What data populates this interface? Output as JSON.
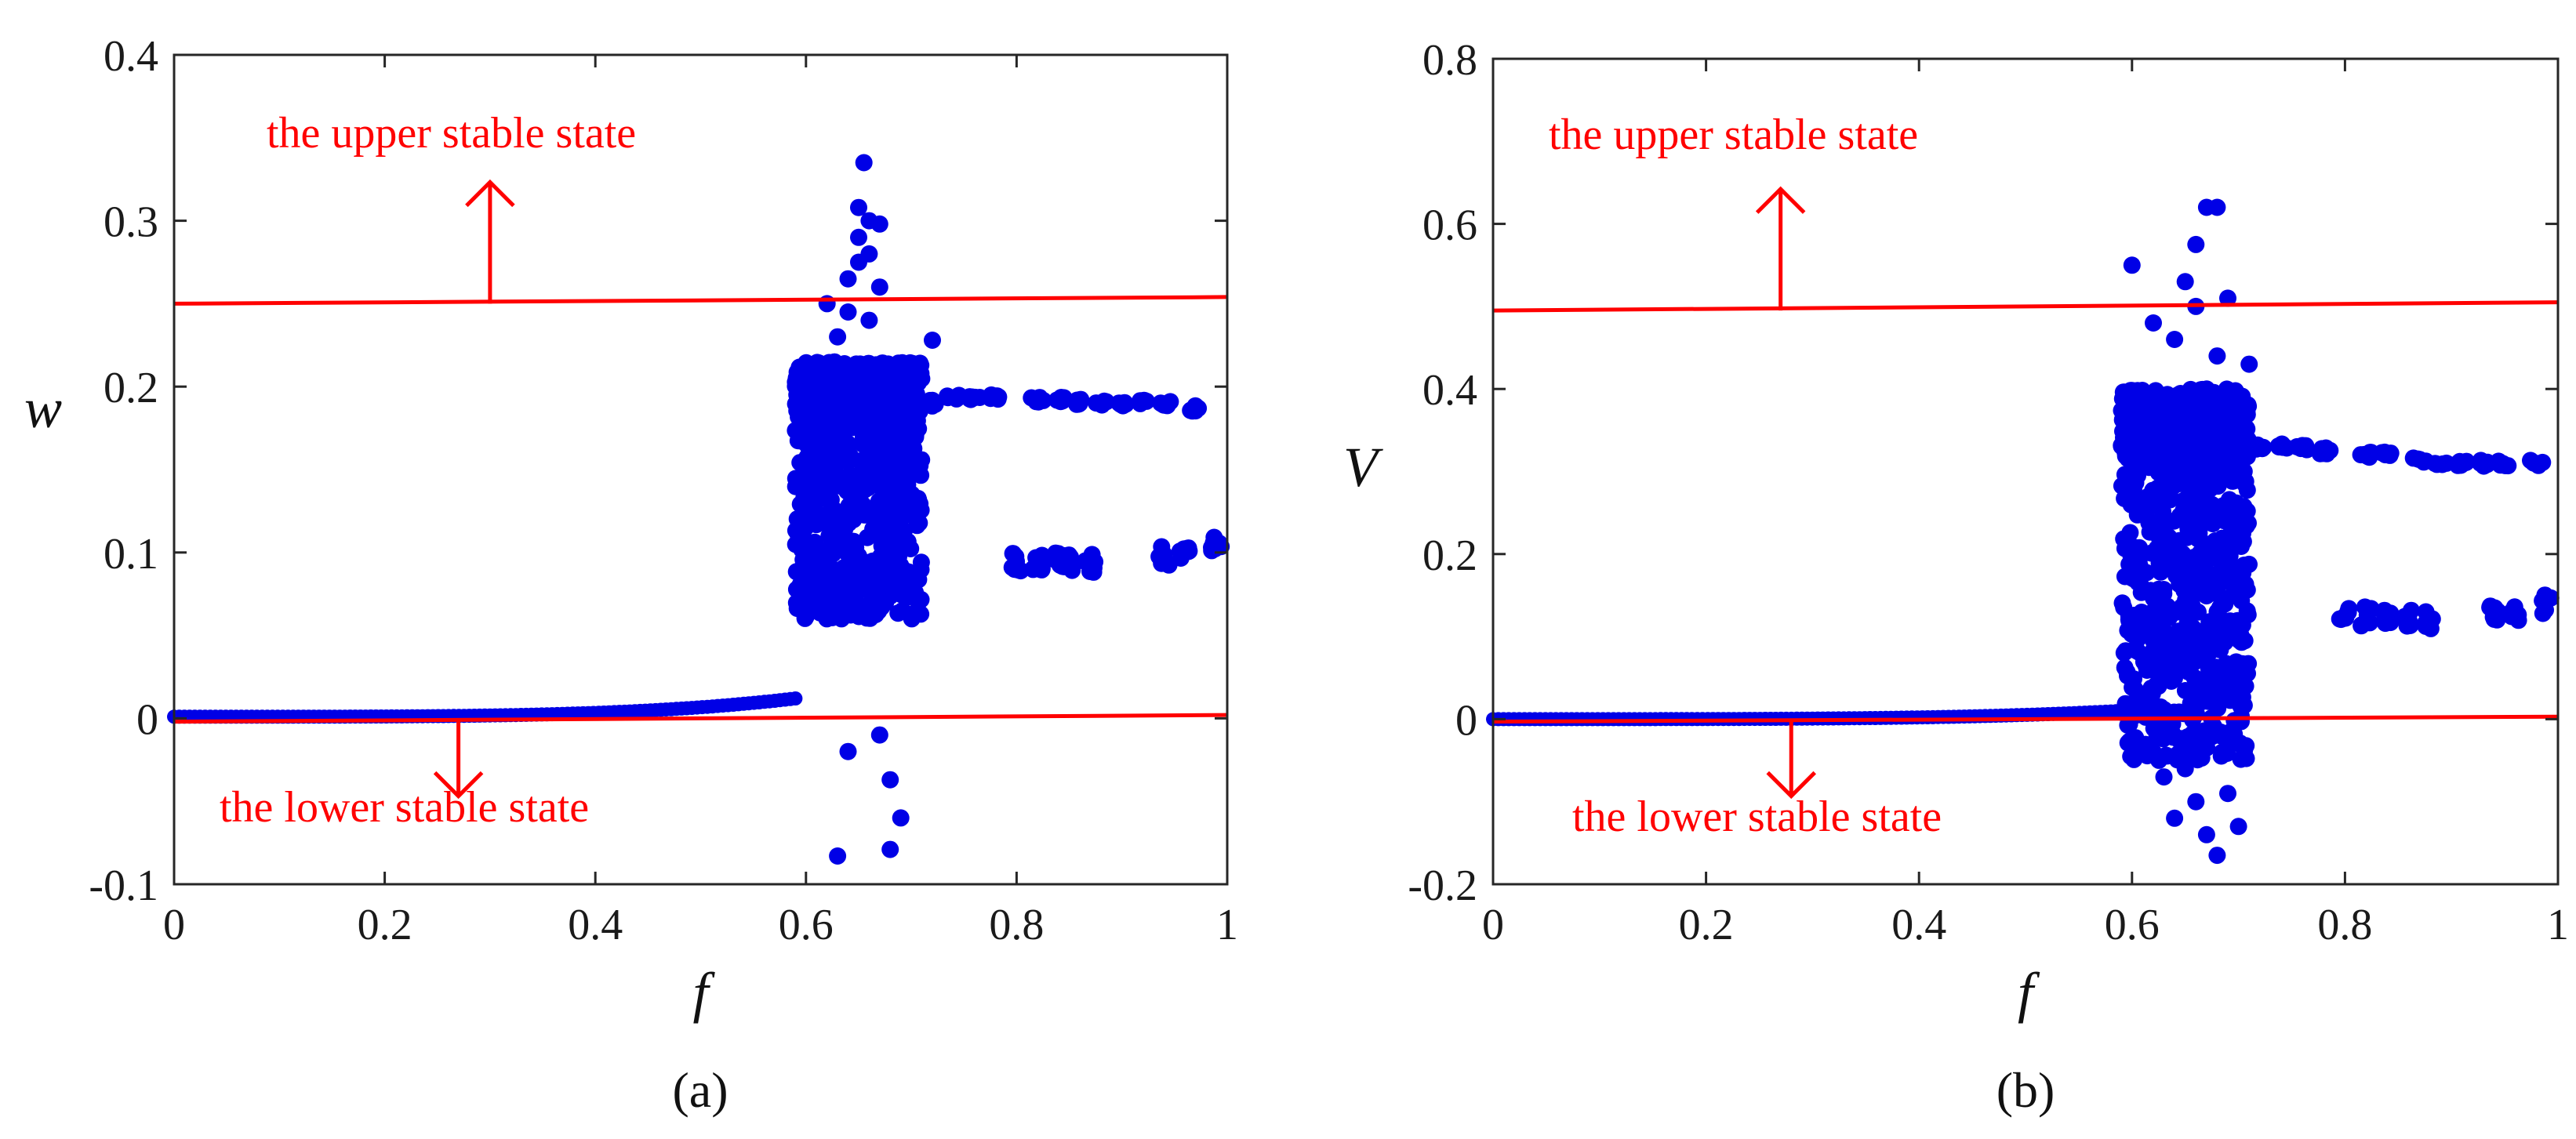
{
  "chart_data": [
    {
      "type": "scatter",
      "panel_label": "(a)",
      "xlabel": "f",
      "ylabel": "w",
      "xlim": [
        0,
        1
      ],
      "ylim": [
        -0.1,
        0.4
      ],
      "xticks": [
        "0",
        "0.2",
        "0.4",
        "0.6",
        "0.8",
        "1"
      ],
      "yticks": [
        "-0.1",
        "0",
        "0.1",
        "0.2",
        "0.3",
        "0.4"
      ],
      "grid": false,
      "color": "#0000e6",
      "reference_lines": [
        {
          "label": "the upper stable state",
          "y_start": 0.25,
          "y_end": 0.254,
          "color": "#ff0000",
          "arrow": "up",
          "arrow_x": 0.3
        },
        {
          "label": "the lower stable state",
          "y_start": -0.002,
          "y_end": 0.002,
          "color": "#ff0000",
          "arrow": "down",
          "arrow_x": 0.27
        }
      ],
      "regimes": {
        "steady_branch": {
          "x_start": 0.0,
          "x_end": 0.59,
          "y_start": 0.001,
          "y_end": 0.012
        },
        "chaotic_band": {
          "x_start": 0.59,
          "x_end": 0.71,
          "y_min": 0.06,
          "y_max": 0.215
        },
        "upper_branch": [
          [
            0.72,
            0.19
          ],
          [
            0.74,
            0.193
          ],
          [
            0.76,
            0.194
          ],
          [
            0.78,
            0.194
          ],
          [
            0.82,
            0.192
          ],
          [
            0.84,
            0.192
          ],
          [
            0.86,
            0.191
          ],
          [
            0.88,
            0.19
          ],
          [
            0.9,
            0.19
          ],
          [
            0.92,
            0.19
          ],
          [
            0.94,
            0.19
          ],
          [
            0.97,
            0.187
          ]
        ],
        "lower_branch": [
          [
            0.8,
            0.095
          ],
          [
            0.82,
            0.095
          ],
          [
            0.84,
            0.094
          ],
          [
            0.85,
            0.094
          ],
          [
            0.87,
            0.094
          ],
          [
            0.94,
            0.098
          ],
          [
            0.96,
            0.1
          ],
          [
            0.99,
            0.105
          ]
        ]
      },
      "points": [
        [
          0.63,
          -0.083
        ],
        [
          0.68,
          -0.079
        ],
        [
          0.69,
          -0.06
        ],
        [
          0.68,
          -0.037
        ],
        [
          0.64,
          -0.02
        ],
        [
          0.67,
          -0.01
        ],
        [
          0.655,
          0.335
        ],
        [
          0.65,
          0.308
        ],
        [
          0.66,
          0.3
        ],
        [
          0.67,
          0.298
        ],
        [
          0.65,
          0.29
        ],
        [
          0.66,
          0.28
        ],
        [
          0.65,
          0.275
        ],
        [
          0.64,
          0.265
        ],
        [
          0.67,
          0.26
        ],
        [
          0.62,
          0.25
        ],
        [
          0.64,
          0.245
        ],
        [
          0.66,
          0.24
        ],
        [
          0.72,
          0.228
        ],
        [
          0.63,
          0.23
        ]
      ]
    },
    {
      "type": "scatter",
      "panel_label": "(b)",
      "xlabel": "f",
      "ylabel": "V",
      "xlim": [
        0,
        1
      ],
      "ylim": [
        -0.2,
        0.8
      ],
      "xticks": [
        "0",
        "0.2",
        "0.4",
        "0.6",
        "0.8",
        "1"
      ],
      "yticks": [
        "-0.2",
        "0",
        "0.2",
        "0.4",
        "0.6",
        "0.8"
      ],
      "grid": false,
      "color": "#0000e6",
      "reference_lines": [
        {
          "label": "the upper stable state",
          "y_start": 0.495,
          "y_end": 0.505,
          "color": "#ff0000",
          "arrow": "up",
          "arrow_x": 0.27
        },
        {
          "label": "the lower stable state",
          "y_start": -0.003,
          "y_end": 0.003,
          "color": "#ff0000",
          "arrow": "down",
          "arrow_x": 0.28
        }
      ],
      "regimes": {
        "steady_branch": {
          "x_start": 0.0,
          "x_end": 0.59,
          "y_start": 0.0,
          "y_end": 0.01
        },
        "chaotic_band": {
          "x_start": 0.59,
          "x_end": 0.71,
          "y_min": -0.05,
          "y_max": 0.4
        },
        "upper_branch": [
          [
            0.72,
            0.33
          ],
          [
            0.74,
            0.33
          ],
          [
            0.76,
            0.33
          ],
          [
            0.78,
            0.325
          ],
          [
            0.82,
            0.32
          ],
          [
            0.84,
            0.32
          ],
          [
            0.87,
            0.315
          ],
          [
            0.89,
            0.31
          ],
          [
            0.91,
            0.31
          ],
          [
            0.93,
            0.31
          ],
          [
            0.95,
            0.31
          ],
          [
            0.98,
            0.31
          ]
        ],
        "lower_branch": [
          [
            0.8,
            0.125
          ],
          [
            0.82,
            0.125
          ],
          [
            0.84,
            0.12
          ],
          [
            0.86,
            0.12
          ],
          [
            0.88,
            0.12
          ],
          [
            0.94,
            0.13
          ],
          [
            0.96,
            0.13
          ],
          [
            0.99,
            0.14
          ]
        ]
      },
      "points": [
        [
          0.67,
          0.62
        ],
        [
          0.68,
          0.62
        ],
        [
          0.66,
          0.575
        ],
        [
          0.6,
          0.55
        ],
        [
          0.65,
          0.53
        ],
        [
          0.69,
          0.51
        ],
        [
          0.66,
          0.5
        ],
        [
          0.62,
          0.48
        ],
        [
          0.64,
          0.46
        ],
        [
          0.68,
          0.44
        ],
        [
          0.71,
          0.43
        ],
        [
          0.68,
          -0.165
        ],
        [
          0.67,
          -0.14
        ],
        [
          0.7,
          -0.13
        ],
        [
          0.64,
          -0.12
        ],
        [
          0.66,
          -0.1
        ],
        [
          0.69,
          -0.09
        ],
        [
          0.63,
          -0.07
        ],
        [
          0.65,
          -0.06
        ],
        [
          0.62,
          -0.04
        ]
      ]
    }
  ]
}
